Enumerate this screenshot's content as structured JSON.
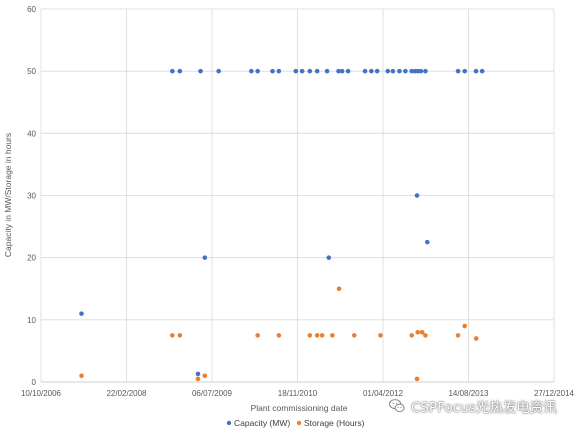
{
  "chart_data": {
    "type": "scatter",
    "xlabel": "Plant commissioning date",
    "ylabel": "Capacity in MW/Storage in hours",
    "x_axis": {
      "scale": "date",
      "min": "2006-10-10",
      "max": "2014-12-27",
      "ticks": [
        "10/10/2006",
        "22/02/2008",
        "06/07/2009",
        "18/11/2010",
        "01/04/2012",
        "14/08/2013",
        "27/12/2014"
      ]
    },
    "y_axis": {
      "min": 0,
      "max": 60,
      "ticks": [
        "0",
        "10",
        "20",
        "30",
        "40",
        "50",
        "60"
      ]
    },
    "grid": true,
    "legend_position": "bottom",
    "series": [
      {
        "name": "Capacity (MW)",
        "color": "#4472C4",
        "points": [
          {
            "x": "2007-06-04",
            "y": 11
          },
          {
            "x": "2008-11-16",
            "y": 50
          },
          {
            "x": "2008-12-30",
            "y": 50
          },
          {
            "x": "2009-04-30",
            "y": 50
          },
          {
            "x": "2009-04-15",
            "y": 1.3
          },
          {
            "x": "2009-05-25",
            "y": 20
          },
          {
            "x": "2009-08-14",
            "y": 50
          },
          {
            "x": "2010-02-21",
            "y": 50
          },
          {
            "x": "2010-03-30",
            "y": 50
          },
          {
            "x": "2010-06-25",
            "y": 50
          },
          {
            "x": "2010-08-01",
            "y": 50
          },
          {
            "x": "2010-11-08",
            "y": 50
          },
          {
            "x": "2010-12-15",
            "y": 50
          },
          {
            "x": "2011-01-29",
            "y": 50
          },
          {
            "x": "2011-03-13",
            "y": 50
          },
          {
            "x": "2011-05-10",
            "y": 50
          },
          {
            "x": "2011-05-20",
            "y": 20
          },
          {
            "x": "2011-07-16",
            "y": 50
          },
          {
            "x": "2011-08-06",
            "y": 50
          },
          {
            "x": "2011-09-10",
            "y": 50
          },
          {
            "x": "2011-12-18",
            "y": 50
          },
          {
            "x": "2012-01-24",
            "y": 50
          },
          {
            "x": "2012-02-27",
            "y": 50
          },
          {
            "x": "2012-04-29",
            "y": 50
          },
          {
            "x": "2012-05-29",
            "y": 50
          },
          {
            "x": "2012-07-06",
            "y": 50
          },
          {
            "x": "2012-08-10",
            "y": 50
          },
          {
            "x": "2012-09-16",
            "y": 50
          },
          {
            "x": "2012-10-05",
            "y": 50
          },
          {
            "x": "2012-10-21",
            "y": 50
          },
          {
            "x": "2012-10-17",
            "y": 30
          },
          {
            "x": "2012-11-08",
            "y": 50
          },
          {
            "x": "2012-12-05",
            "y": 50
          },
          {
            "x": "2012-12-16",
            "y": 22.5
          },
          {
            "x": "2013-06-14",
            "y": 50
          },
          {
            "x": "2013-07-23",
            "y": 50
          },
          {
            "x": "2013-09-27",
            "y": 50
          },
          {
            "x": "2013-11-02",
            "y": 50
          }
        ]
      },
      {
        "name": "Storage (Hours)",
        "color": "#ED7D31",
        "points": [
          {
            "x": "2007-06-04",
            "y": 1
          },
          {
            "x": "2008-11-16",
            "y": 7.5
          },
          {
            "x": "2008-12-30",
            "y": 7.5
          },
          {
            "x": "2009-04-15",
            "y": 0.5
          },
          {
            "x": "2009-05-25",
            "y": 1
          },
          {
            "x": "2010-03-30",
            "y": 7.5
          },
          {
            "x": "2010-08-01",
            "y": 7.5
          },
          {
            "x": "2011-01-29",
            "y": 7.5
          },
          {
            "x": "2011-03-13",
            "y": 7.5
          },
          {
            "x": "2011-04-11",
            "y": 7.5
          },
          {
            "x": "2011-06-10",
            "y": 7.5
          },
          {
            "x": "2011-07-19",
            "y": 15
          },
          {
            "x": "2011-10-16",
            "y": 7.5
          },
          {
            "x": "2012-03-17",
            "y": 7.5
          },
          {
            "x": "2012-09-16",
            "y": 7.5
          },
          {
            "x": "2012-10-17",
            "y": 0.5
          },
          {
            "x": "2012-10-21",
            "y": 8
          },
          {
            "x": "2012-11-16",
            "y": 8
          },
          {
            "x": "2012-12-05",
            "y": 7.5
          },
          {
            "x": "2013-06-14",
            "y": 7.5
          },
          {
            "x": "2013-07-23",
            "y": 9
          },
          {
            "x": "2013-09-28",
            "y": 7
          }
        ]
      }
    ]
  },
  "watermark": {
    "text": "CSPFocus光热发电资讯",
    "icon": "wechat-logo-icon"
  }
}
